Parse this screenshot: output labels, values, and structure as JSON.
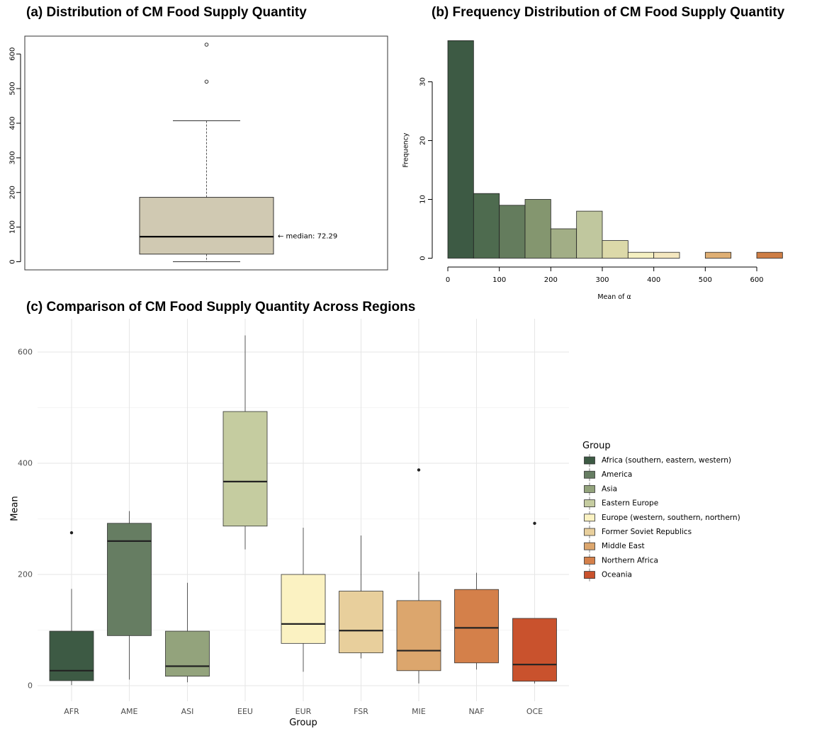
{
  "titles": {
    "a": "(a) Distribution of CM Food Supply Quantity",
    "b": "(b) Frequency Distribution of CM Food Supply Quantity",
    "c": "(c) Comparison of CM Food Supply Quantity Across Regions"
  },
  "chart_data": [
    {
      "panel": "a",
      "type": "box",
      "ylim": [
        0,
        640
      ],
      "yticks": [
        0,
        100,
        200,
        300,
        400,
        500,
        600
      ],
      "box": {
        "whisker_low": 0,
        "q1": 22,
        "median": 72.29,
        "q3": 186,
        "whisker_high": 407
      },
      "outliers": [
        520,
        627
      ],
      "annotation": "← median: 72.29",
      "fill": "#d0c9b2"
    },
    {
      "panel": "b",
      "type": "histogram",
      "xlabel": "Mean of α",
      "ylabel": "Frequency",
      "xticks": [
        0,
        100,
        200,
        300,
        400,
        500,
        600
      ],
      "yticks": [
        0,
        10,
        20,
        30
      ],
      "xlim": [
        0,
        650
      ],
      "ylim": [
        0,
        37
      ],
      "bins": [
        {
          "x0": 0,
          "x1": 50,
          "count": 37,
          "color": "#3d5a44"
        },
        {
          "x0": 50,
          "x1": 100,
          "count": 11,
          "color": "#4e6b4f"
        },
        {
          "x0": 100,
          "x1": 150,
          "count": 9,
          "color": "#647c5d"
        },
        {
          "x0": 150,
          "x1": 200,
          "count": 10,
          "color": "#84966f"
        },
        {
          "x0": 200,
          "x1": 250,
          "count": 5,
          "color": "#a2ae86"
        },
        {
          "x0": 250,
          "x1": 300,
          "count": 8,
          "color": "#c0c79e"
        },
        {
          "x0": 300,
          "x1": 350,
          "count": 3,
          "color": "#dcd9a9"
        },
        {
          "x0": 350,
          "x1": 400,
          "count": 1,
          "color": "#f5f0c2"
        },
        {
          "x0": 400,
          "x1": 450,
          "count": 1,
          "color": "#f4e7bf"
        },
        {
          "x0": 450,
          "x1": 500,
          "count": 0,
          "color": "#eed8ac"
        },
        {
          "x0": 500,
          "x1": 550,
          "count": 1,
          "color": "#dfaf74"
        },
        {
          "x0": 550,
          "x1": 600,
          "count": 0,
          "color": "#d79a5e"
        },
        {
          "x0": 600,
          "x1": 650,
          "count": 1,
          "color": "#ce7e46"
        }
      ]
    },
    {
      "panel": "c",
      "type": "box",
      "xlabel": "Group",
      "ylabel": "Mean",
      "ylim": [
        -25,
        660
      ],
      "yticks": [
        0,
        200,
        400,
        600
      ],
      "categories": [
        "AFR",
        "AME",
        "ASI",
        "EEU",
        "EUR",
        "FSR",
        "MIE",
        "NAF",
        "OCE"
      ],
      "series": [
        {
          "name": "Africa (southern, eastern, western)",
          "color": "#3d5a44",
          "box": [
            1,
            9,
            27,
            98,
            174
          ],
          "outliers": [
            275
          ]
        },
        {
          "name": "America",
          "color": "#667d62",
          "box": [
            11,
            90,
            260,
            292,
            314
          ],
          "outliers": []
        },
        {
          "name": "Asia",
          "color": "#93a37c",
          "box": [
            6,
            17,
            35,
            98,
            185
          ],
          "outliers": []
        },
        {
          "name": "Eastern Europe",
          "color": "#c5cca0",
          "box": [
            245,
            287,
            367,
            493,
            630
          ],
          "outliers": []
        },
        {
          "name": "Europe (western, southern, northern)",
          "color": "#fbf2c2",
          "box": [
            25,
            76,
            111,
            200,
            284
          ],
          "outliers": []
        },
        {
          "name": "Former Soviet Republics",
          "color": "#e8cf9c",
          "box": [
            49,
            59,
            99,
            170,
            270
          ],
          "outliers": []
        },
        {
          "name": "Middle East",
          "color": "#dca66d",
          "box": [
            4,
            27,
            63,
            153,
            205
          ],
          "outliers": [
            388
          ]
        },
        {
          "name": "Northern Africa",
          "color": "#d4804a",
          "box": [
            29,
            41,
            104,
            173,
            203
          ],
          "outliers": []
        },
        {
          "name": "Oceania",
          "color": "#c9522d",
          "box": [
            4,
            8,
            38,
            121,
            121
          ],
          "outliers": [
            292
          ]
        }
      ],
      "legend": {
        "title": "Group",
        "position": "right"
      }
    }
  ]
}
